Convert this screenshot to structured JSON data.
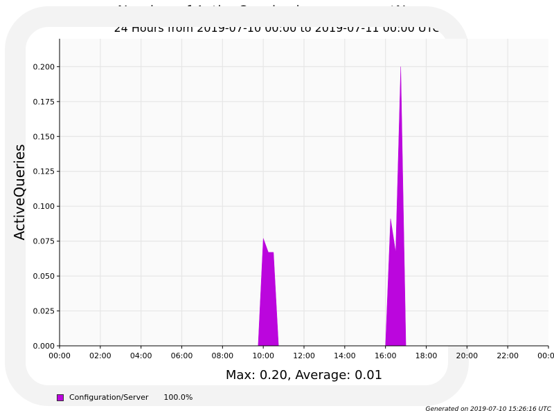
{
  "chart_data": {
    "type": "area",
    "title": "Number of ActiveQueries by componentName",
    "subtitle": "24 Hours from 2019-07-10 00:00 to 2019-07-11 00:00 UTC",
    "xlabel": "",
    "ylabel": "ActiveQueries",
    "x_ticks": [
      "00:00",
      "02:00",
      "04:00",
      "06:00",
      "08:00",
      "10:00",
      "12:00",
      "14:00",
      "16:00",
      "18:00",
      "20:00",
      "22:00",
      "00:00"
    ],
    "xlim": [
      "2019-07-10 00:00",
      "2019-07-11 00:00"
    ],
    "ylim": [
      0,
      0.22
    ],
    "y_ticks": [
      "0.000",
      "0.025",
      "0.050",
      "0.075",
      "0.100",
      "0.125",
      "0.150",
      "0.175",
      "0.200"
    ],
    "grid": true,
    "series": [
      {
        "name": "Configuration/Server",
        "color": "#bb06dd",
        "points": [
          [
            "2019-07-10 09:45",
            0
          ],
          [
            "2019-07-10 10:00",
            0.077
          ],
          [
            "2019-07-10 10:15",
            0.067
          ],
          [
            "2019-07-10 10:30",
            0.067
          ],
          [
            "2019-07-10 10:45",
            0
          ],
          [
            "2019-07-10 16:00",
            0
          ],
          [
            "2019-07-10 16:15",
            0.091
          ],
          [
            "2019-07-10 16:30",
            0.067
          ],
          [
            "2019-07-10 16:45",
            0.2
          ],
          [
            "2019-07-10 17:00",
            0
          ]
        ]
      }
    ],
    "summary": "Max: 0.20, Average: 0.01",
    "legend": [
      {
        "label": "Configuration/Server",
        "percent": "100.0%",
        "color": "#bb06dd"
      }
    ],
    "footer": "Generated on 2019-07-10 15:26:16 UTC"
  }
}
